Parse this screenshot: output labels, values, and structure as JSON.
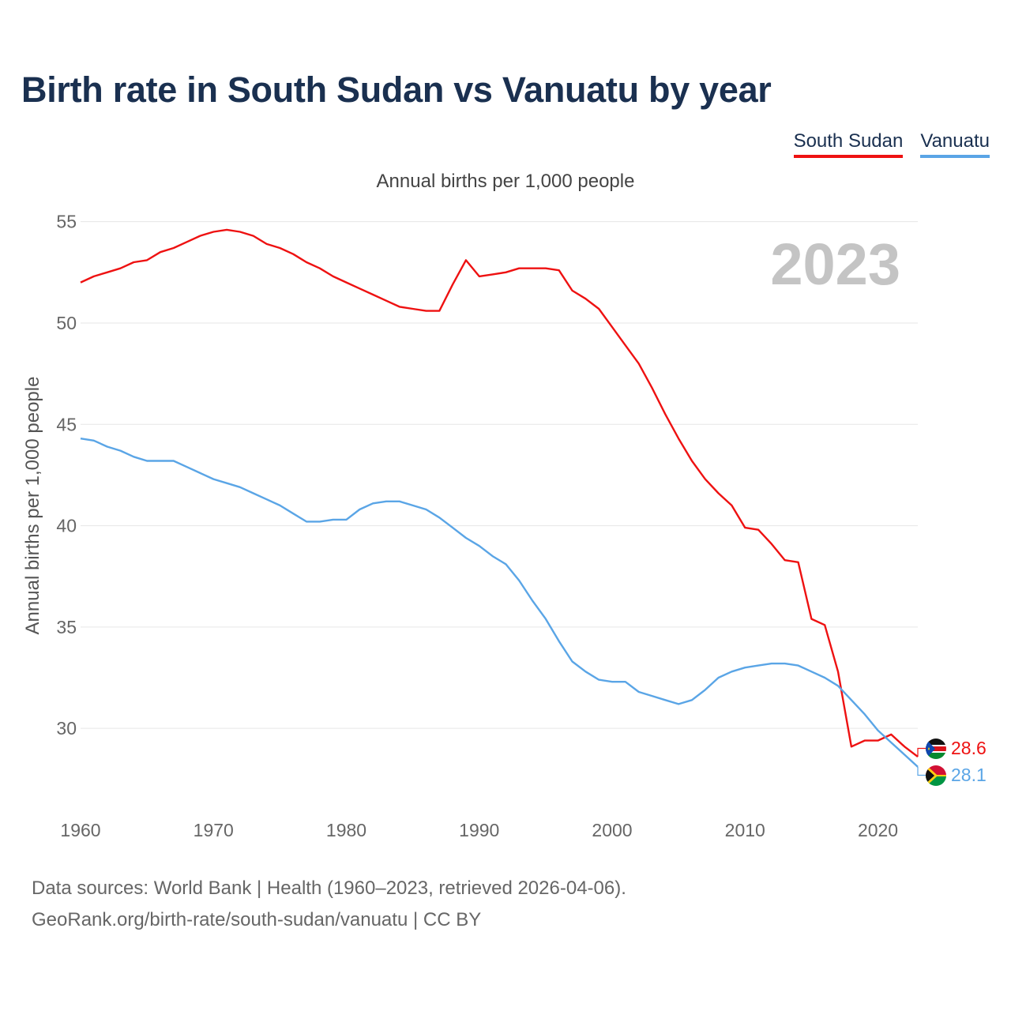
{
  "title": "Birth rate in South Sudan vs Vanuatu by year",
  "subtitle": "Annual births per 1,000 people",
  "year_watermark": "2023",
  "source_line1": "Data sources: World Bank | Health (1960–2023, retrieved 2026-04-06).",
  "source_line2": "GeoRank.org/birth-rate/south-sudan/vanuatu | CC BY",
  "legend": [
    {
      "name": "South Sudan",
      "color": "#ee1111"
    },
    {
      "name": "Vanuatu",
      "color": "#5aa5e6"
    }
  ],
  "end_labels": {
    "south_sudan": "28.6",
    "vanuatu": "28.1"
  },
  "chart_data": {
    "type": "line",
    "title": "Birth rate in South Sudan vs Vanuatu by year",
    "xlabel": "",
    "ylabel": "Annual births per 1,000 people",
    "xlim": [
      1960,
      2023
    ],
    "ylim": [
      26.5,
      56
    ],
    "xticks": [
      1960,
      1970,
      1980,
      1990,
      2000,
      2010,
      2020
    ],
    "yticks": [
      30,
      35,
      40,
      45,
      50,
      55
    ],
    "grid": true,
    "x": [
      1960,
      1961,
      1962,
      1963,
      1964,
      1965,
      1966,
      1967,
      1968,
      1969,
      1970,
      1971,
      1972,
      1973,
      1974,
      1975,
      1976,
      1977,
      1978,
      1979,
      1980,
      1981,
      1982,
      1983,
      1984,
      1985,
      1986,
      1987,
      1988,
      1989,
      1990,
      1991,
      1992,
      1993,
      1994,
      1995,
      1996,
      1997,
      1998,
      1999,
      2000,
      2001,
      2002,
      2003,
      2004,
      2005,
      2006,
      2007,
      2008,
      2009,
      2010,
      2011,
      2012,
      2013,
      2014,
      2015,
      2016,
      2017,
      2018,
      2019,
      2020,
      2021,
      2022,
      2023
    ],
    "series": [
      {
        "name": "South Sudan",
        "color": "#ee1111",
        "values": [
          52.0,
          52.3,
          52.5,
          52.7,
          53.0,
          53.1,
          53.5,
          53.7,
          54.0,
          54.3,
          54.5,
          54.6,
          54.5,
          54.3,
          53.9,
          53.7,
          53.4,
          53.0,
          52.7,
          52.3,
          52.0,
          51.7,
          51.4,
          51.1,
          50.8,
          50.7,
          50.6,
          50.6,
          51.9,
          53.1,
          52.3,
          52.4,
          52.5,
          52.7,
          52.7,
          52.7,
          52.6,
          51.6,
          51.2,
          50.7,
          49.8,
          48.9,
          48.0,
          46.8,
          45.5,
          44.3,
          43.2,
          42.3,
          41.6,
          41.0,
          39.9,
          39.8,
          39.1,
          38.3,
          38.2,
          35.4,
          35.1,
          32.8,
          29.1,
          29.4,
          29.4,
          29.7,
          29.1,
          28.6
        ]
      },
      {
        "name": "Vanuatu",
        "color": "#5aa5e6",
        "values": [
          44.3,
          44.2,
          43.9,
          43.7,
          43.4,
          43.2,
          43.2,
          43.2,
          42.9,
          42.6,
          42.3,
          42.1,
          41.9,
          41.6,
          41.3,
          41.0,
          40.6,
          40.2,
          40.2,
          40.3,
          40.3,
          40.8,
          41.1,
          41.2,
          41.2,
          41.0,
          40.8,
          40.4,
          39.9,
          39.4,
          39.0,
          38.5,
          38.1,
          37.3,
          36.3,
          35.4,
          34.3,
          33.3,
          32.8,
          32.4,
          32.3,
          32.3,
          31.8,
          31.6,
          31.4,
          31.2,
          31.4,
          31.9,
          32.5,
          32.8,
          33.0,
          33.1,
          33.2,
          33.2,
          33.1,
          32.8,
          32.5,
          32.1,
          31.4,
          30.7,
          29.9,
          29.3,
          28.7,
          28.1
        ]
      }
    ]
  }
}
